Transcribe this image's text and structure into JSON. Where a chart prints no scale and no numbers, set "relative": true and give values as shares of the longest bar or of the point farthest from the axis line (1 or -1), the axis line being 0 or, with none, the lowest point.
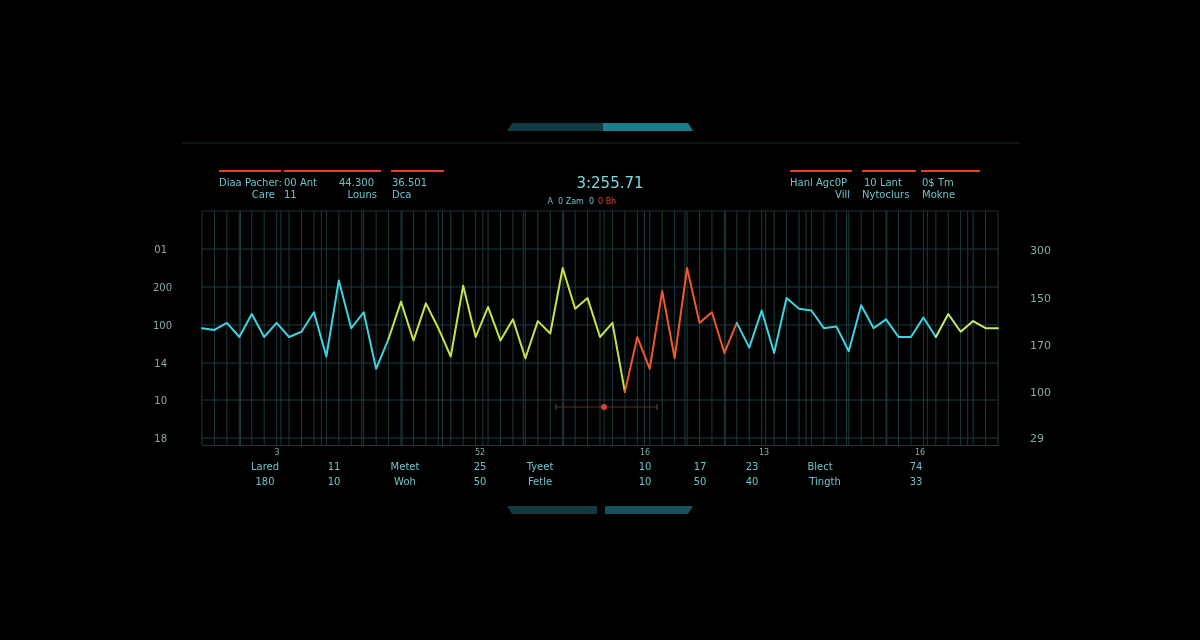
{
  "chart_data": {
    "type": "line",
    "relative": true,
    "grid": true,
    "marker": "none",
    "line_style": "solid",
    "categories": [
      null,
      null,
      null,
      null,
      null,
      null,
      null,
      null,
      null,
      null,
      null,
      null,
      null,
      null,
      null,
      null,
      null,
      null,
      null,
      null,
      null,
      null,
      null,
      null,
      null,
      null,
      null,
      null,
      null,
      null,
      null,
      null,
      null,
      null,
      null,
      null,
      null,
      null,
      null,
      null,
      null,
      null,
      null,
      null,
      null,
      null,
      null,
      null,
      null,
      null,
      null,
      null,
      null,
      null,
      null,
      null,
      null,
      null,
      null,
      null,
      null,
      null,
      null,
      null,
      null
    ],
    "series": [
      {
        "color": "#3fd3e0",
        "values": [
          0.66,
          0.65,
          0.69,
          0.61,
          0.74,
          0.61,
          0.69,
          0.61,
          0.64,
          0.75,
          0.5,
          0.93,
          0.66,
          0.75,
          0.43,
          0.6,
          null,
          null,
          null,
          null,
          null,
          null,
          null,
          null,
          null,
          null,
          null,
          null,
          null,
          null,
          null,
          null,
          null,
          null,
          null,
          null,
          null,
          null,
          null,
          null,
          null,
          null,
          null,
          null,
          null,
          null,
          null,
          null,
          null,
          null,
          null,
          null,
          null,
          null,
          null,
          null,
          null,
          null,
          null,
          null,
          null,
          null,
          null,
          null,
          null
        ]
      },
      {
        "color": "#c6e34a",
        "values": [
          null,
          null,
          null,
          null,
          null,
          null,
          null,
          null,
          null,
          null,
          null,
          null,
          null,
          null,
          null,
          0.6,
          0.81,
          0.59,
          0.8,
          0.66,
          0.5,
          0.9,
          0.61,
          0.78,
          0.59,
          0.71,
          0.49,
          0.7,
          0.63,
          1,
          0.77,
          0.83,
          0.61,
          0.69,
          0.3,
          null,
          null,
          null,
          null,
          null,
          null,
          null,
          null,
          null,
          null,
          null,
          null,
          null,
          null,
          null,
          null,
          null,
          null,
          null,
          null,
          null,
          null,
          null,
          null,
          null,
          null,
          null,
          null,
          null,
          null
        ]
      },
      {
        "color": "#f0582c",
        "values": [
          null,
          null,
          null,
          null,
          null,
          null,
          null,
          null,
          null,
          null,
          null,
          null,
          null,
          null,
          null,
          null,
          null,
          null,
          null,
          null,
          null,
          null,
          null,
          null,
          null,
          null,
          null,
          null,
          null,
          null,
          null,
          null,
          null,
          null,
          0.3,
          0.61,
          0.43,
          0.87,
          0.49,
          1,
          0.69,
          0.75,
          0.52,
          0.69,
          null,
          null,
          null,
          null,
          null,
          null,
          null,
          null,
          null,
          null,
          null,
          null,
          null,
          null,
          null,
          null,
          null,
          null,
          null,
          null,
          null
        ]
      },
      {
        "color": "#3fd3e0",
        "values": [
          null,
          null,
          null,
          null,
          null,
          null,
          null,
          null,
          null,
          null,
          null,
          null,
          null,
          null,
          null,
          null,
          null,
          null,
          null,
          null,
          null,
          null,
          null,
          null,
          null,
          null,
          null,
          null,
          null,
          null,
          null,
          null,
          null,
          null,
          null,
          null,
          null,
          null,
          null,
          null,
          null,
          null,
          null,
          0.69,
          0.55,
          0.76,
          0.52,
          0.83,
          0.77,
          0.76,
          0.66,
          0.67,
          0.53,
          0.79,
          0.66,
          0.71,
          0.61,
          0.61,
          0.72,
          0.61,
          null,
          null,
          null,
          null,
          null
        ]
      },
      {
        "color": "#c8ea6a",
        "values": [
          null,
          null,
          null,
          null,
          null,
          null,
          null,
          null,
          null,
          null,
          null,
          null,
          null,
          null,
          null,
          null,
          null,
          null,
          null,
          null,
          null,
          null,
          null,
          null,
          null,
          null,
          null,
          null,
          null,
          null,
          null,
          null,
          null,
          null,
          null,
          null,
          null,
          null,
          null,
          null,
          null,
          null,
          null,
          null,
          null,
          null,
          null,
          null,
          null,
          null,
          null,
          null,
          null,
          null,
          null,
          null,
          null,
          null,
          null,
          0.61,
          0.74,
          0.64,
          0.7,
          0.66,
          0.66
        ]
      }
    ],
    "annotations": [
      "Diaa Pacher:",
      "Care",
      "00 Ant",
      "11",
      "44.300",
      "Louns",
      "36.501",
      "Dca",
      "3:255.71",
      "A  0 Zam  0",
      "0 Bh",
      "Hanl Agc0P",
      "Vill",
      "10 Lant",
      "Nytoclurs",
      "0$ Tm",
      "Mokne",
      "01",
      "200",
      "100",
      "14",
      "10",
      "18",
      "300",
      "150",
      "170",
      "100",
      "29",
      "3",
      "52",
      "16",
      "13",
      "16",
      "Lared",
      "11",
      "Metet",
      "25",
      "Tyeet",
      "10",
      "17",
      "23",
      "Blect",
      "74",
      "180",
      "10",
      "Woh",
      "50",
      "Fetle",
      "10",
      "50",
      "40",
      "Tingth",
      "33"
    ]
  }
}
